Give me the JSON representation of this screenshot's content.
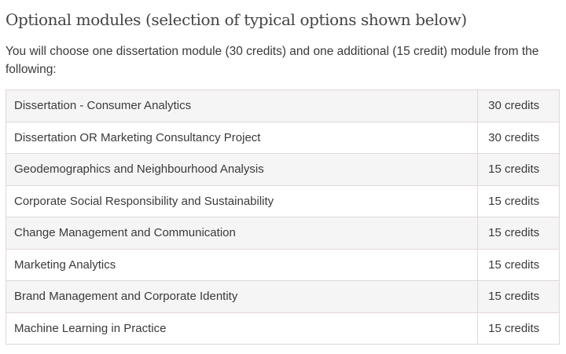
{
  "heading": "Optional modules (selection of typical options shown below)",
  "intro": "You will choose one dissertation module (30 credits) and one additional (15 credit) module from the following:",
  "modules": [
    {
      "name": "Dissertation - Consumer Analytics",
      "credits": "30 credits"
    },
    {
      "name": "Dissertation OR Marketing Consultancy Project",
      "credits": "30 credits"
    },
    {
      "name": "Geodemographics and Neighbourhood Analysis",
      "credits": "15 credits"
    },
    {
      "name": "Corporate Social Responsibility and Sustainability",
      "credits": "15 credits"
    },
    {
      "name": "Change Management and Communication",
      "credits": "15 credits"
    },
    {
      "name": "Marketing Analytics",
      "credits": "15 credits"
    },
    {
      "name": "Brand Management and Corporate Identity",
      "credits": "15 credits"
    },
    {
      "name": "Machine Learning in Practice",
      "credits": "15 credits"
    }
  ]
}
